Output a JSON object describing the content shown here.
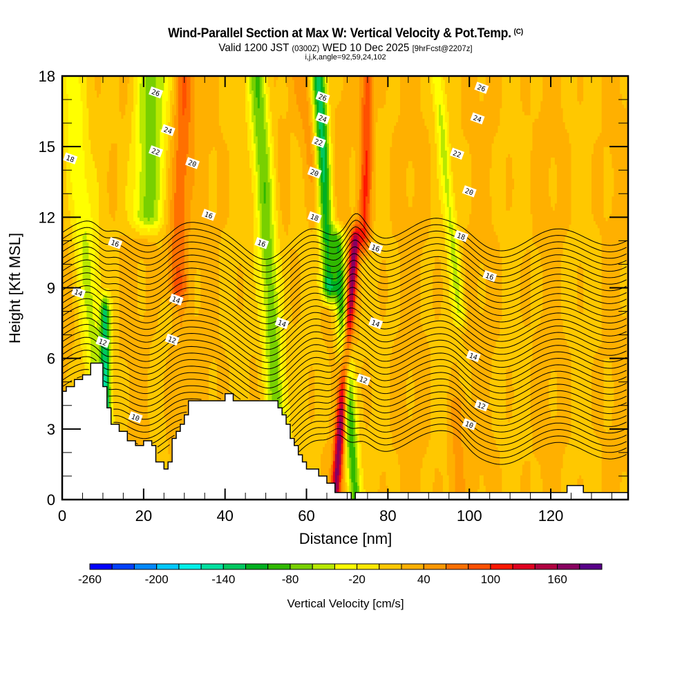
{
  "chart_data": {
    "type": "heatmap",
    "title": "Wind-Parallel Section at Max W: Vertical Velocity & Pot.Temp.",
    "title_mark": "(C)",
    "subtitle_parts": [
      "Valid 1200 JST ",
      "(0300Z)",
      " WED 10 Dec 2025 ",
      "[9hrFcst@2207z]"
    ],
    "subtitle2": "i,j,k,angle=92,59,24,102",
    "xlabel": "Distance [nm]",
    "ylabel": "Height [Kft MSL]",
    "xlim": [
      0,
      139
    ],
    "ylim": [
      0,
      18
    ],
    "xticks": [
      0,
      20,
      40,
      60,
      80,
      100,
      120
    ],
    "xtick_labels": [
      "0",
      "20",
      "40",
      "60",
      "80",
      "100",
      "120"
    ],
    "yticks": [
      0,
      3,
      6,
      9,
      12,
      15,
      18
    ],
    "ytick_labels": [
      "0",
      "3",
      "6",
      "9",
      "12",
      "15",
      "18"
    ],
    "colorbar": {
      "label": "Vertical Velocity [cm/s]",
      "levels_start": -260,
      "level_step": 20,
      "tick_labels": [
        "-260",
        "-200",
        "-140",
        "-80",
        "-20",
        "40",
        "100",
        "160"
      ],
      "tick_values": [
        -260,
        -200,
        -140,
        -80,
        -20,
        40,
        100,
        160
      ],
      "colors": [
        "#0000ff",
        "#0040ff",
        "#0088ff",
        "#00c8ff",
        "#00f0e8",
        "#00e0a0",
        "#00c860",
        "#00b020",
        "#30b800",
        "#78d000",
        "#b8e800",
        "#ffff00",
        "#ffe800",
        "#ffc800",
        "#ffb000",
        "#ff9800",
        "#ff7000",
        "#ff5000",
        "#ff1800",
        "#e00020",
        "#b00040",
        "#880060",
        "#580088"
      ]
    },
    "background_w": 20,
    "w_bands": [
      {
        "name": "downdraft-west",
        "x_bottom": 11,
        "x_top": 2,
        "value": -40,
        "width": 3
      },
      {
        "name": "downdraft-west-core",
        "x_bottom": 11,
        "x_top": 10,
        "value": -110,
        "width": 1.2,
        "zmax": 8
      },
      {
        "name": "downdraft-upper-west",
        "x_bottom": 18,
        "x_top": 22,
        "value": -70,
        "width": 4,
        "zmin": 12
      },
      {
        "name": "updraft-west",
        "x_bottom": 26,
        "x_top": 30,
        "value": 80,
        "width": 2.5,
        "zmin": 9
      },
      {
        "name": "updraft-west-low",
        "x_bottom": 28,
        "x_top": 30,
        "value": 40,
        "width": 2,
        "zmax": 9
      },
      {
        "name": "downdraft-mid",
        "x_bottom": 54,
        "x_top": 48,
        "value": -80,
        "width": 2.5
      },
      {
        "name": "downdraft-high",
        "x_bottom": 68,
        "x_top": 63,
        "value": -140,
        "width": 1.8,
        "zmin": 9
      },
      {
        "name": "updraft-mid-high",
        "x_bottom": 74,
        "x_top": 59,
        "value": 60,
        "width": 2.5,
        "zmin": 10
      },
      {
        "name": "updraft-core",
        "x_bottom": 67,
        "x_top": 75,
        "value": 170,
        "width": 1.2,
        "zmax": 11
      },
      {
        "name": "updraft-upper",
        "x_bottom": 73,
        "x_top": 75,
        "value": 100,
        "width": 1.5,
        "zmin": 11
      },
      {
        "name": "downdraft-core",
        "x_bottom": 72,
        "x_top": 65,
        "value": -100,
        "width": 1.6,
        "zmax": 11
      },
      {
        "name": "downdraft-east",
        "x_bottom": 102,
        "x_top": 92,
        "value": -40,
        "width": 1.5,
        "zmin": 8
      },
      {
        "name": "updraft-east",
        "x_bottom": 97,
        "x_top": 97,
        "value": 50,
        "width": 2,
        "zmax": 4
      }
    ],
    "terrain": [
      [
        0,
        4.6
      ],
      [
        1,
        4.6
      ],
      [
        1,
        4.8
      ],
      [
        3,
        4.8
      ],
      [
        3,
        5.1
      ],
      [
        5,
        5.1
      ],
      [
        5,
        5.3
      ],
      [
        7,
        5.3
      ],
      [
        7,
        5.8
      ],
      [
        10,
        5.8
      ],
      [
        10,
        4.8
      ],
      [
        11,
        4.8
      ],
      [
        11,
        3.9
      ],
      [
        12,
        3.9
      ],
      [
        12,
        3.2
      ],
      [
        14,
        3.2
      ],
      [
        14,
        2.9
      ],
      [
        16,
        2.9
      ],
      [
        16,
        2.5
      ],
      [
        18,
        2.5
      ],
      [
        18,
        2.3
      ],
      [
        20,
        2.3
      ],
      [
        20,
        2.5
      ],
      [
        22,
        2.5
      ],
      [
        22,
        2.3
      ],
      [
        23,
        2.3
      ],
      [
        23,
        1.6
      ],
      [
        25,
        1.6
      ],
      [
        25,
        1.3
      ],
      [
        26,
        1.3
      ],
      [
        26,
        1.6
      ],
      [
        27,
        1.6
      ],
      [
        27,
        2.6
      ],
      [
        28,
        2.6
      ],
      [
        28,
        2.9
      ],
      [
        29,
        2.9
      ],
      [
        29,
        3.2
      ],
      [
        30,
        3.2
      ],
      [
        30,
        3.6
      ],
      [
        31,
        3.6
      ],
      [
        31,
        4.2
      ],
      [
        40,
        4.2
      ],
      [
        40,
        4.5
      ],
      [
        42,
        4.5
      ],
      [
        42,
        4.2
      ],
      [
        53,
        4.2
      ],
      [
        53,
        3.9
      ],
      [
        54,
        3.9
      ],
      [
        54,
        3.6
      ],
      [
        55,
        3.6
      ],
      [
        55,
        3.2
      ],
      [
        56,
        3.2
      ],
      [
        56,
        2.6
      ],
      [
        57,
        2.6
      ],
      [
        57,
        2.3
      ],
      [
        58,
        2.3
      ],
      [
        58,
        1.9
      ],
      [
        59,
        1.9
      ],
      [
        59,
        1.6
      ],
      [
        60,
        1.6
      ],
      [
        60,
        1.3
      ],
      [
        63,
        1.3
      ],
      [
        63,
        1.0
      ],
      [
        65,
        1.0
      ],
      [
        65,
        0.7
      ],
      [
        67,
        0.7
      ],
      [
        67,
        0.3
      ],
      [
        71,
        0.3
      ],
      [
        71,
        0.0
      ],
      [
        72,
        0.0
      ],
      [
        72,
        0.3
      ],
      [
        124,
        0.3
      ],
      [
        124,
        0.6
      ],
      [
        128,
        0.6
      ],
      [
        128,
        0.3
      ],
      [
        139,
        0.3
      ]
    ],
    "theta_levels": [
      10,
      10.5,
      11,
      11.5,
      12,
      12.5,
      13,
      13.5,
      14,
      14.5,
      15,
      15.5,
      16,
      16.5,
      17,
      17.5,
      18,
      18.5,
      19,
      19.5,
      20,
      20.5,
      21,
      21.5,
      22,
      22.5,
      23,
      23.5,
      24,
      24.5,
      25,
      25.5,
      26,
      26.5
    ],
    "contour_labels": [
      {
        "text": "26",
        "x": 23,
        "z": 17.3
      },
      {
        "text": "24",
        "x": 26,
        "z": 15.7
      },
      {
        "text": "22",
        "x": 23,
        "z": 14.8
      },
      {
        "text": "20",
        "x": 32,
        "z": 14.3
      },
      {
        "text": "18",
        "x": 2,
        "z": 14.5
      },
      {
        "text": "16",
        "x": 36,
        "z": 12.1
      },
      {
        "text": "16",
        "x": 13,
        "z": 10.9
      },
      {
        "text": "14",
        "x": 4,
        "z": 8.8
      },
      {
        "text": "14",
        "x": 28,
        "z": 8.5
      },
      {
        "text": "12",
        "x": 10,
        "z": 6.7
      },
      {
        "text": "12",
        "x": 27,
        "z": 6.8
      },
      {
        "text": "10",
        "x": 18,
        "z": 3.5
      },
      {
        "text": "16",
        "x": 49,
        "z": 10.9
      },
      {
        "text": "14",
        "x": 54,
        "z": 7.5
      },
      {
        "text": "26",
        "x": 64,
        "z": 17.1
      },
      {
        "text": "24",
        "x": 64,
        "z": 16.2
      },
      {
        "text": "22",
        "x": 63,
        "z": 15.2
      },
      {
        "text": "20",
        "x": 62,
        "z": 13.9
      },
      {
        "text": "18",
        "x": 62,
        "z": 12.0
      },
      {
        "text": "16",
        "x": 77,
        "z": 10.7
      },
      {
        "text": "14",
        "x": 77,
        "z": 7.5
      },
      {
        "text": "12",
        "x": 74,
        "z": 5.1
      },
      {
        "text": "26",
        "x": 103,
        "z": 17.5
      },
      {
        "text": "24",
        "x": 102,
        "z": 16.2
      },
      {
        "text": "22",
        "x": 97,
        "z": 14.7
      },
      {
        "text": "20",
        "x": 100,
        "z": 13.1
      },
      {
        "text": "18",
        "x": 98,
        "z": 11.2
      },
      {
        "text": "16",
        "x": 105,
        "z": 9.5
      },
      {
        "text": "14",
        "x": 101,
        "z": 6.1
      },
      {
        "text": "12",
        "x": 103,
        "z": 4.0
      },
      {
        "text": "10",
        "x": 100,
        "z": 3.2
      }
    ]
  }
}
